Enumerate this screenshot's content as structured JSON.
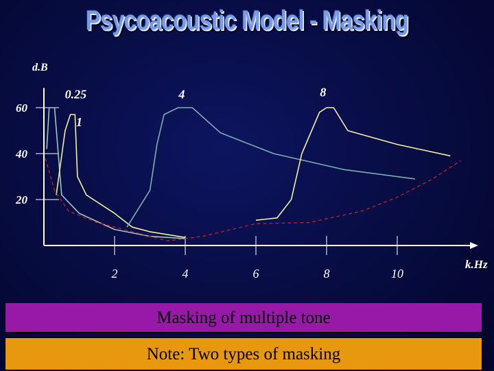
{
  "title": "Psycoacoustic Model - Masking",
  "caption": "Masking of multiple tone",
  "note": "Note: Two types of masking",
  "colors": {
    "axis": "#ffffff",
    "tone_0_25": "#9fc7c0",
    "tone_1": "#f4f29a",
    "tone_4": "#7fb0b0",
    "tone_8": "#f4f29a",
    "threshold": "#c42020",
    "caption_band": "#9818a8",
    "note_band": "#e8980e"
  },
  "chart_data": {
    "type": "line",
    "xlabel": "k.Hz",
    "ylabel": "d.B",
    "xlim": [
      0,
      12
    ],
    "ylim": [
      0,
      70
    ],
    "x_ticks": [
      2,
      4,
      6,
      8,
      10
    ],
    "y_ticks": [
      20,
      40,
      60
    ],
    "series": [
      {
        "name": "0.25",
        "style": "solid",
        "points": [
          [
            0.08,
            42
          ],
          [
            0.15,
            60
          ],
          [
            0.3,
            60
          ],
          [
            0.5,
            22
          ],
          [
            1.0,
            14
          ],
          [
            2.0,
            7
          ],
          [
            3.0,
            4
          ],
          [
            4.0,
            3
          ]
        ]
      },
      {
        "name": "1",
        "style": "solid",
        "points": [
          [
            0.35,
            22
          ],
          [
            0.6,
            50
          ],
          [
            0.75,
            57
          ],
          [
            0.88,
            57
          ],
          [
            0.95,
            30
          ],
          [
            1.2,
            22
          ],
          [
            2.0,
            14
          ],
          [
            2.5,
            8
          ],
          [
            3.0,
            6
          ],
          [
            4.0,
            3.5
          ]
        ]
      },
      {
        "name": "4",
        "style": "solid",
        "points": [
          [
            2.35,
            8
          ],
          [
            3.0,
            24
          ],
          [
            3.2,
            44
          ],
          [
            3.4,
            57
          ],
          [
            3.8,
            60
          ],
          [
            4.2,
            60
          ],
          [
            5.0,
            49
          ],
          [
            6.5,
            40
          ],
          [
            8.5,
            33
          ],
          [
            10.5,
            29
          ]
        ]
      },
      {
        "name": "8",
        "style": "solid",
        "points": [
          [
            6.0,
            11
          ],
          [
            6.6,
            12
          ],
          [
            7.0,
            20
          ],
          [
            7.3,
            40
          ],
          [
            7.8,
            58
          ],
          [
            8.0,
            60
          ],
          [
            8.2,
            60
          ],
          [
            8.6,
            50
          ],
          [
            10.0,
            44
          ],
          [
            11.5,
            39
          ]
        ]
      },
      {
        "name": "",
        "style": "dashed",
        "points": [
          [
            0.04,
            38
          ],
          [
            0.3,
            24
          ],
          [
            0.7,
            15
          ],
          [
            1.5,
            10
          ],
          [
            3.5,
            2
          ],
          [
            4.5,
            4
          ],
          [
            6.0,
            9.5
          ],
          [
            7.5,
            10
          ],
          [
            9.0,
            15
          ],
          [
            10.0,
            21
          ],
          [
            11.0,
            29
          ],
          [
            11.8,
            37
          ]
        ]
      }
    ],
    "annotations": [
      {
        "text": "0.25",
        "x": 0.9,
        "y": 64
      },
      {
        "text": "1",
        "x": 1.0,
        "y": 52
      },
      {
        "text": "4",
        "x": 3.9,
        "y": 64
      },
      {
        "text": "8",
        "x": 7.9,
        "y": 65
      }
    ],
    "grid": false,
    "legend": "none"
  }
}
